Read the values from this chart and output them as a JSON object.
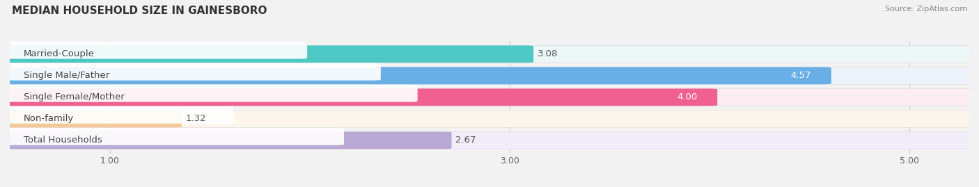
{
  "title": "MEDIAN HOUSEHOLD SIZE IN GAINESBORO",
  "source": "Source: ZipAtlas.com",
  "categories": [
    "Married-Couple",
    "Single Male/Father",
    "Single Female/Mother",
    "Non-family",
    "Total Households"
  ],
  "values": [
    3.08,
    4.57,
    4.0,
    1.32,
    2.67
  ],
  "bar_colors": [
    "#4dc8c4",
    "#6aaee6",
    "#f06090",
    "#f5c898",
    "#b8a8d4"
  ],
  "bar_bg_colors": [
    "#edf7f7",
    "#edf3fa",
    "#fcedf3",
    "#fdf6ed",
    "#f0ecf8"
  ],
  "label_bg_color": "#ffffff",
  "xlim_data": [
    0.5,
    5.3
  ],
  "xmin": 0.5,
  "xmax": 5.3,
  "xticks": [
    1.0,
    3.0,
    5.0
  ],
  "xtick_labels": [
    "1.00",
    "3.00",
    "5.00"
  ],
  "value_inside": [
    false,
    true,
    true,
    false,
    false
  ],
  "figsize": [
    14.06,
    2.69
  ],
  "dpi": 100,
  "background_color": "#f2f2f2",
  "bar_background_color": "#ebebeb",
  "title_fontsize": 11,
  "label_fontsize": 9.5,
  "value_fontsize": 9.5
}
